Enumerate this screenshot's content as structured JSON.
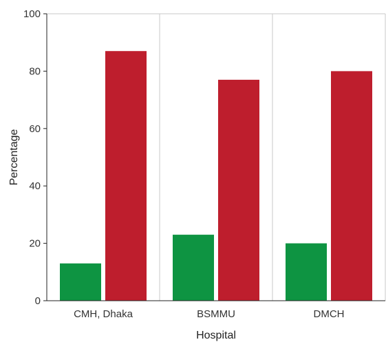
{
  "chart_data": {
    "type": "bar",
    "categories": [
      "CMH, Dhaka",
      "BSMMU",
      "DMCH"
    ],
    "series": [
      {
        "values": [
          13,
          23,
          20
        ],
        "color": "#0e9442"
      },
      {
        "values": [
          87,
          77,
          80
        ],
        "color": "#be1e2d"
      }
    ],
    "xlabel": "Hospital",
    "ylabel": "Percentage",
    "ylim": [
      0,
      100
    ],
    "yticks": [
      0,
      20,
      40,
      60,
      80,
      100
    ],
    "grid": "vertical-separators"
  }
}
